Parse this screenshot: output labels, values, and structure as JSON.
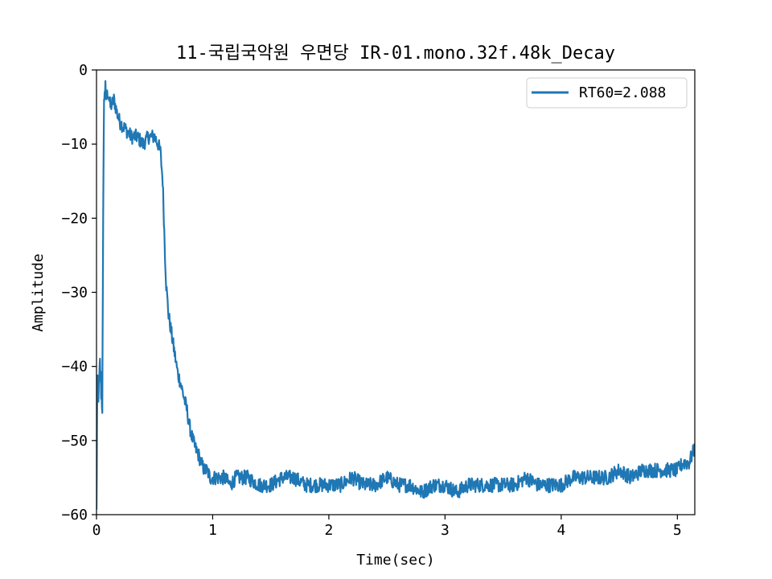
{
  "chart_data": {
    "type": "line",
    "title": "11-국립국악원 우면당 IR-01.mono.32f.48k_Decay",
    "xlabel": "Time(sec)",
    "ylabel": "Amplitude",
    "xlim": [
      0,
      5.15
    ],
    "ylim": [
      -60,
      0
    ],
    "xticks": [
      0,
      1,
      2,
      3,
      4,
      5
    ],
    "yticks": [
      0,
      -10,
      -20,
      -30,
      -40,
      -50,
      -60
    ],
    "xtick_labels": [
      "0",
      "1",
      "2",
      "3",
      "4",
      "5"
    ],
    "ytick_labels": [
      "0",
      "−10",
      "−20",
      "−30",
      "−40",
      "−50",
      "−60"
    ],
    "grid": false,
    "legend_position": "top-right",
    "series": [
      {
        "name": "RT60=2.088",
        "color": "#1f77b4",
        "x": [
          0.0,
          0.005,
          0.01,
          0.02,
          0.03,
          0.04,
          0.05,
          0.055,
          0.06,
          0.065,
          0.07,
          0.08,
          0.1,
          0.12,
          0.15,
          0.18,
          0.2,
          0.25,
          0.3,
          0.35,
          0.4,
          0.45,
          0.5,
          0.53,
          0.55,
          0.57,
          0.58,
          0.59,
          0.6,
          0.62,
          0.65,
          0.68,
          0.7,
          0.72,
          0.75,
          0.78,
          0.8,
          0.83,
          0.85,
          0.88,
          0.9,
          0.93,
          0.95,
          0.98,
          1.0,
          1.05,
          1.1,
          1.15,
          1.2,
          1.3,
          1.4,
          1.5,
          1.6,
          1.7,
          1.8,
          1.9,
          2.0,
          2.1,
          2.2,
          2.3,
          2.4,
          2.5,
          2.6,
          2.7,
          2.8,
          2.9,
          3.0,
          3.1,
          3.2,
          3.3,
          3.4,
          3.5,
          3.6,
          3.7,
          3.8,
          3.9,
          4.0,
          4.1,
          4.2,
          4.3,
          4.4,
          4.5,
          4.6,
          4.7,
          4.8,
          4.9,
          5.0,
          5.05,
          5.1,
          5.15
        ],
        "y": [
          -60,
          -47,
          -42,
          -44,
          -40,
          -43,
          -45,
          -30,
          -12,
          -5,
          -2,
          -4,
          -3,
          -5,
          -4,
          -6,
          -7,
          -8,
          -9,
          -9,
          -10,
          -9,
          -9,
          -10,
          -11,
          -15,
          -20,
          -25,
          -29,
          -33,
          -36,
          -39,
          -41,
          -42,
          -44,
          -46,
          -48,
          -50,
          -51,
          -52,
          -53,
          -54,
          -54,
          -55,
          -55,
          -55,
          -55,
          -56,
          -55,
          -55,
          -56,
          -56,
          -55,
          -55,
          -56,
          -56,
          -56,
          -56,
          -55,
          -56,
          -56,
          -55,
          -56,
          -56,
          -57,
          -56,
          -56,
          -57,
          -56,
          -56,
          -56,
          -56,
          -56,
          -55,
          -56,
          -56,
          -56,
          -55,
          -55,
          -55,
          -55,
          -54,
          -55,
          -54,
          -54,
          -54,
          -54,
          -53,
          -53,
          -51
        ]
      }
    ]
  }
}
